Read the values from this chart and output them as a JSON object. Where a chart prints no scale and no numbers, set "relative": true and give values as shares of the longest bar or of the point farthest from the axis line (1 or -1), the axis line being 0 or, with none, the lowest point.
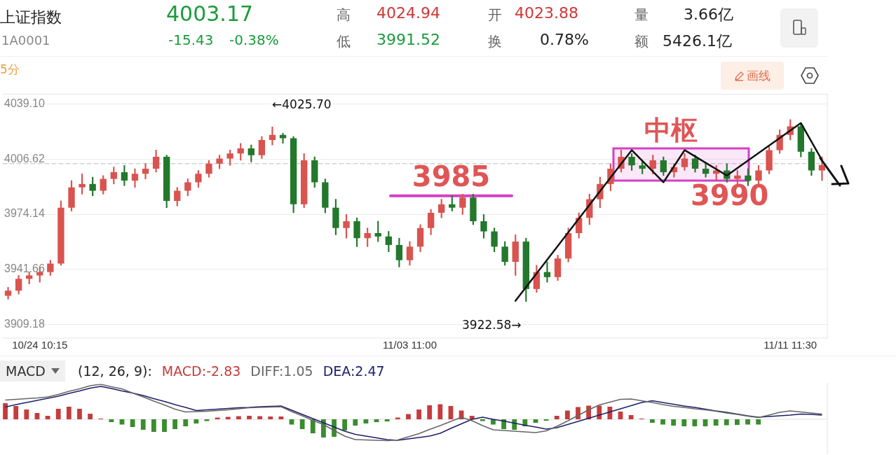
{
  "chart_data": [
    {
      "type": "other",
      "title": "上证指数",
      "subtitle": "1A0001",
      "annotations": [
        "4003.17",
        "-15.43",
        "-0.38%",
        "高",
        "4024.94",
        "低",
        "3991.52",
        "开",
        "4023.88",
        "换",
        "0.78%",
        "量",
        "3.66亿",
        "额",
        "5426.1亿",
        "5分",
        "画线"
      ]
    },
    {
      "type": "candlestick",
      "colors": [
        "#d9534f",
        "#d9534f",
        "#d9534f",
        "#d9534f",
        "#d9534f",
        "#d9534f",
        "#d9534f",
        "#d9534f",
        "#23782c",
        "#d9534f",
        "#d9534f",
        "#23782c",
        "#d9534f",
        "#d9534f",
        "#d9534f",
        "#23782c",
        "#d9534f",
        "#d9534f",
        "#d9534f",
        "#d9534f",
        "#d9534f",
        "#d9534f",
        "#d9534f",
        "#23782c",
        "#d9534f",
        "#d9534f",
        "#23782c",
        "#23782c",
        "#d9534f",
        "#23782c",
        "#23782c",
        "#23782c",
        "#d9534f",
        "#23782c",
        "#d9534f",
        "#23782c",
        "#23782c",
        "#23782c",
        "#d9534f",
        "#d9534f",
        "#d9534f",
        "#d9534f",
        "#23782c",
        "#d9534f",
        "#23782c",
        "#23782c",
        "#23782c",
        "#23782c",
        "#d9534f",
        "#23782c",
        "#d9534f",
        "#23782c",
        "#d9534f",
        "#d9534f",
        "#d9534f",
        "#d9534f",
        "#d9534f",
        "#d9534f",
        "#d9534f",
        "#23782c",
        "#23782c",
        "#d9534f",
        "#23782c",
        "#d9534f",
        "#d9534f",
        "#23782c",
        "#23782c",
        "#d9534f",
        "#23782c",
        "#d9534f",
        "#23782c",
        "#d9534f",
        "#d9534f",
        "#d9534f",
        "#d9534f",
        "#23782c",
        "#23782c",
        "#d9534f"
      ],
      "categories": [
        null,
        null,
        null,
        "10/24 10:15",
        null,
        null,
        null,
        null,
        null,
        null,
        null,
        null,
        null,
        null,
        null,
        null,
        null,
        null,
        null,
        null,
        null,
        null,
        null,
        null,
        null,
        null,
        null,
        null,
        null,
        null,
        null,
        null,
        null,
        null,
        null,
        null,
        null,
        null,
        "11/03 11:00",
        null,
        null,
        null,
        null,
        null,
        null,
        null,
        null,
        null,
        null,
        null,
        null,
        null,
        null,
        null,
        null,
        null,
        null,
        null,
        null,
        null,
        null,
        null,
        null,
        null,
        null,
        null,
        null,
        null,
        null,
        null,
        null,
        null,
        null,
        null,
        "11/11 11:30",
        null,
        null,
        null
      ],
      "ohlc": [
        [
          3926,
          3931,
          3924,
          3929
        ],
        [
          3929,
          3938,
          3927,
          3936
        ],
        [
          3936,
          3940,
          3933,
          3938
        ],
        [
          3938,
          3943,
          3934,
          3940
        ],
        [
          3940,
          3947,
          3938,
          3945
        ],
        [
          3945,
          3982,
          3944,
          3978
        ],
        [
          3978,
          3994,
          3976,
          3990
        ],
        [
          3990,
          3998,
          3986,
          3992
        ],
        [
          3992,
          3996,
          3985,
          3988
        ],
        [
          3988,
          3997,
          3986,
          3995
        ],
        [
          3995,
          4002,
          3992,
          3999
        ],
        [
          3999,
          4003,
          3991,
          3994
        ],
        [
          3994,
          4001,
          3990,
          3998
        ],
        [
          3998,
          4004,
          3995,
          4001
        ],
        [
          4001,
          4012,
          3999,
          4008
        ],
        [
          4008,
          4009,
          3978,
          3982
        ],
        [
          3982,
          3990,
          3979,
          3988
        ],
        [
          3988,
          3995,
          3985,
          3993
        ],
        [
          3993,
          4000,
          3990,
          3998
        ],
        [
          3998,
          4006,
          3996,
          4004
        ],
        [
          4004,
          4009,
          4001,
          4007
        ],
        [
          4007,
          4012,
          4003,
          4010
        ],
        [
          4010,
          4016,
          4006,
          4013
        ],
        [
          4013,
          4015,
          4005,
          4009
        ],
        [
          4009,
          4020,
          4007,
          4018
        ],
        [
          4018,
          4025.7,
          4015,
          4021
        ],
        [
          4021,
          4022,
          4016,
          4019
        ],
        [
          4019,
          4020,
          3975,
          3980
        ],
        [
          3980,
          4010,
          3978,
          4006
        ],
        [
          4006,
          4008,
          3990,
          3993
        ],
        [
          3993,
          3995,
          3975,
          3978
        ],
        [
          3978,
          3983,
          3962,
          3966
        ],
        [
          3966,
          3974,
          3960,
          3970
        ],
        [
          3970,
          3972,
          3955,
          3960
        ],
        [
          3960,
          3966,
          3955,
          3963
        ],
        [
          3963,
          3970,
          3958,
          3961
        ],
        [
          3961,
          3964,
          3952,
          3956
        ],
        [
          3956,
          3960,
          3943,
          3947
        ],
        [
          3947,
          3958,
          3944,
          3955
        ],
        [
          3955,
          3968,
          3952,
          3966
        ],
        [
          3966,
          3977,
          3962,
          3975
        ],
        [
          3975,
          3983,
          3972,
          3980
        ],
        [
          3980,
          3985,
          3976,
          3978
        ],
        [
          3978,
          3986,
          3974,
          3984
        ],
        [
          3984,
          3986,
          3968,
          3970
        ],
        [
          3970,
          3974,
          3960,
          3964
        ],
        [
          3964,
          3966,
          3952,
          3955
        ],
        [
          3955,
          3958,
          3944,
          3946
        ],
        [
          3946,
          3962,
          3938,
          3958
        ],
        [
          3958,
          3960,
          3922.58,
          3930
        ],
        [
          3930,
          3944,
          3928,
          3940
        ],
        [
          3940,
          3946,
          3934,
          3937
        ],
        [
          3937,
          3950,
          3935,
          3948
        ],
        [
          3948,
          3966,
          3946,
          3963
        ],
        [
          3963,
          3975,
          3960,
          3972
        ],
        [
          3972,
          3986,
          3968,
          3983
        ],
        [
          3983,
          3996,
          3978,
          3992
        ],
        [
          3992,
          4004,
          3988,
          4001
        ],
        [
          4001,
          4012,
          3999,
          4008
        ],
        [
          4008,
          4010,
          4000,
          4003
        ],
        [
          4003,
          4006,
          3998,
          4001
        ],
        [
          4001,
          4009,
          3998,
          4006
        ],
        [
          4006,
          4008,
          3997,
          3999
        ],
        [
          3999,
          4004,
          3996,
          4002
        ],
        [
          4002,
          4010,
          4000,
          4007
        ],
        [
          4007,
          4009,
          3999,
          4001
        ],
        [
          4001,
          4004,
          3996,
          3998
        ],
        [
          3998,
          4003,
          3994,
          4000
        ],
        [
          4000,
          4004,
          3993,
          3995
        ],
        [
          3995,
          4000,
          3992,
          3997
        ],
        [
          3997,
          4001,
          3991,
          3994
        ],
        [
          3994,
          4003,
          3992,
          4000
        ],
        [
          4000,
          4014,
          3998,
          4012
        ],
        [
          4012,
          4024,
          4010,
          4021
        ],
        [
          4021,
          4030,
          4018,
          4026
        ],
        [
          4026,
          4027,
          4008,
          4011
        ],
        [
          4011,
          4013,
          3997,
          4000
        ],
        [
          4000,
          4008,
          3994,
          4003.17
        ]
      ],
      "ylim": [
        3901,
        4045
      ],
      "yticks": [
        {
          "value": 4039.1,
          "label": "4039.10"
        },
        {
          "value": 4006.62,
          "label": "4006.62"
        },
        {
          "value": 3974.14,
          "label": "3974.14"
        },
        {
          "value": 3941.66,
          "label": "3941.66"
        },
        {
          "value": 3909.18,
          "label": "3909.18"
        }
      ],
      "grid": "y",
      "ref_lines": [
        {
          "axis": "y",
          "value": 4004,
          "line_style": "dashed",
          "color": "#bbbbbb"
        },
        {
          "axis": "y",
          "value": 3985,
          "label": "3985",
          "color": "#d63fc4"
        }
      ],
      "bands": [
        {
          "axis": "y",
          "from": 3994,
          "to": 4013,
          "label": "中枢",
          "color": "#d63fc4"
        }
      ],
      "series": [
        {
          "type": "line",
          "color": "#111111",
          "values": [
            null,
            null,
            null,
            null,
            null,
            null,
            null,
            null,
            null,
            null,
            null,
            null,
            null,
            null,
            null,
            null,
            null,
            null,
            null,
            null,
            null,
            null,
            null,
            null,
            null,
            null,
            null,
            null,
            null,
            null,
            null,
            null,
            null,
            null,
            null,
            null,
            null,
            null,
            null,
            null,
            null,
            null,
            null,
            null,
            null,
            null,
            null,
            null,
            3923,
            null,
            null,
            null,
            null,
            null,
            null,
            null,
            null,
            null,
            null,
            4012,
            null,
            null,
            3993,
            null,
            4012,
            null,
            null,
            null,
            3997,
            null,
            null,
            null,
            null,
            null,
            null,
            4028,
            null,
            4006
          ]
        }
      ],
      "annotations": [
        "←4025.70",
        "3922.58→",
        "3990"
      ]
    },
    {
      "type": "bar",
      "relative": true,
      "legend": "top left",
      "annotations": [
        "MACD",
        "(12, 26, 9):"
      ],
      "categories": [
        null,
        null,
        null,
        null,
        null,
        null,
        null,
        null,
        null,
        null,
        null,
        null,
        null,
        null,
        null,
        null,
        null,
        null,
        null,
        null,
        null,
        null,
        null,
        null,
        null,
        null,
        null,
        null,
        null,
        null,
        null,
        null,
        null,
        null,
        null,
        null,
        null,
        null,
        null,
        null,
        null,
        null,
        null,
        null,
        null,
        null,
        null,
        null,
        null,
        null,
        null,
        null,
        null,
        null,
        null,
        null,
        null,
        null,
        null,
        null,
        null,
        null,
        null,
        null,
        null,
        null,
        null,
        null,
        null,
        null,
        null,
        null,
        null,
        null,
        null,
        null,
        null,
        null
      ],
      "series": [
        {
          "name": "MACD:-2.83",
          "type": "bar",
          "values": [
            0.46,
            0.38,
            0.28,
            0.18,
            0.1,
            0.3,
            0.36,
            0.3,
            0.16,
            0.02,
            -0.08,
            -0.15,
            -0.22,
            -0.3,
            -0.36,
            -0.36,
            -0.28,
            -0.2,
            -0.12,
            -0.05,
            0.05,
            0.07,
            0.09,
            0.1,
            0.09,
            0.08,
            0.08,
            -0.15,
            -0.28,
            -0.4,
            -0.52,
            -0.5,
            -0.32,
            -0.18,
            -0.12,
            -0.08,
            -0.06,
            0.05,
            0.15,
            0.28,
            0.4,
            0.43,
            0.38,
            0.25,
            0.1,
            -0.05,
            -0.15,
            -0.28,
            -0.3,
            -0.2,
            -0.1,
            -0.04,
            0.1,
            0.25,
            0.35,
            0.39,
            0.39,
            0.36,
            0.22,
            0.12,
            0.02,
            -0.1,
            -0.15,
            -0.18,
            -0.2,
            -0.2,
            -0.2,
            -0.18,
            -0.17,
            -0.16,
            -0.15,
            -0.15,
            null,
            null,
            null,
            null,
            null,
            null
          ],
          "colors": [
            "#c43c3c",
            "#c43c3c",
            "#c43c3c",
            "#c43c3c",
            "#c43c3c",
            "#c43c3c",
            "#c43c3c",
            "#c43c3c",
            "#c43c3c",
            "#c43c3c",
            "#3a8c2e",
            "#3a8c2e",
            "#3a8c2e",
            "#3a8c2e",
            "#3a8c2e",
            "#3a8c2e",
            "#3a8c2e",
            "#3a8c2e",
            "#3a8c2e",
            "#3a8c2e",
            "#c43c3c",
            "#c43c3c",
            "#c43c3c",
            "#c43c3c",
            "#c43c3c",
            "#c43c3c",
            "#c43c3c",
            "#3a8c2e",
            "#3a8c2e",
            "#3a8c2e",
            "#3a8c2e",
            "#3a8c2e",
            "#3a8c2e",
            "#3a8c2e",
            "#3a8c2e",
            "#3a8c2e",
            "#3a8c2e",
            "#c43c3c",
            "#c43c3c",
            "#c43c3c",
            "#c43c3c",
            "#c43c3c",
            "#c43c3c",
            "#c43c3c",
            "#c43c3c",
            "#3a8c2e",
            "#3a8c2e",
            "#3a8c2e",
            "#3a8c2e",
            "#3a8c2e",
            "#3a8c2e",
            "#3a8c2e",
            "#c43c3c",
            "#c43c3c",
            "#c43c3c",
            "#c43c3c",
            "#c43c3c",
            "#c43c3c",
            "#c43c3c",
            "#c43c3c",
            "#c43c3c",
            "#3a8c2e",
            "#3a8c2e",
            "#3a8c2e",
            "#3a8c2e",
            "#3a8c2e",
            "#3a8c2e",
            "#3a8c2e",
            "#3a8c2e",
            "#3a8c2e",
            "#3a8c2e",
            "#3a8c2e",
            "#c43c3c",
            "#c43c3c",
            "#c43c3c",
            "#c43c3c",
            "#c43c3c",
            "#c43c3c"
          ]
        },
        {
          "name": "DIFF:1.05",
          "type": "line",
          "color": "#666666",
          "values": [
            0.55,
            0.57,
            0.59,
            0.61,
            0.64,
            0.71,
            0.8,
            0.87,
            0.96,
            1,
            0.93,
            0.87,
            0.75,
            0.64,
            0.52,
            0.41,
            0.29,
            0.21,
            0.22,
            0.23,
            0.25,
            0.27,
            0.3,
            0.33,
            0.34,
            0.35,
            0.36,
            0.22,
            0.1,
            -0.03,
            -0.15,
            -0.32,
            -0.48,
            -0.58,
            -0.59,
            -0.6,
            -0.61,
            -0.59,
            -0.5,
            -0.41,
            -0.29,
            -0.18,
            -0.06,
            0.06,
            -0.04,
            -0.18,
            -0.3,
            -0.32,
            -0.34,
            -0.36,
            -0.38,
            -0.33,
            -0.2,
            -0.05,
            0.11,
            0.27,
            0.41,
            0.49,
            0.57,
            0.58,
            0.53,
            0.48,
            0.42,
            0.37,
            0.34,
            0.3,
            0.27,
            0.23,
            0.18,
            0.14,
            0.09,
            0.05,
            0.12,
            0.2,
            0.24,
            0.21,
            0.18,
            0.15
          ]
        },
        {
          "name": "DEA:2.47",
          "type": "line",
          "color": "#1c1f6b",
          "values": [
            0.35,
            0.42,
            0.48,
            0.54,
            0.6,
            0.66,
            0.74,
            0.81,
            0.89,
            0.94,
            0.88,
            0.81,
            0.75,
            0.68,
            0.59,
            0.51,
            0.42,
            0.34,
            0.25,
            0.27,
            0.29,
            0.31,
            0.33,
            0.34,
            0.36,
            0.37,
            0.38,
            0.26,
            0.14,
            0.02,
            -0.1,
            -0.22,
            -0.34,
            -0.43,
            -0.48,
            -0.53,
            -0.58,
            -0.6,
            -0.56,
            -0.52,
            -0.48,
            -0.4,
            -0.26,
            -0.13,
            0.0,
            0.06,
            0.0,
            -0.05,
            -0.11,
            -0.17,
            -0.22,
            -0.28,
            -0.24,
            -0.15,
            -0.06,
            0.03,
            0.12,
            0.21,
            0.3,
            0.39,
            0.48,
            0.53,
            0.48,
            0.43,
            0.38,
            0.34,
            0.29,
            0.24,
            0.2,
            0.15,
            0.1,
            0.06,
            0.08,
            0.1,
            0.12,
            0.15,
            0.14,
            0.12
          ]
        }
      ]
    }
  ]
}
